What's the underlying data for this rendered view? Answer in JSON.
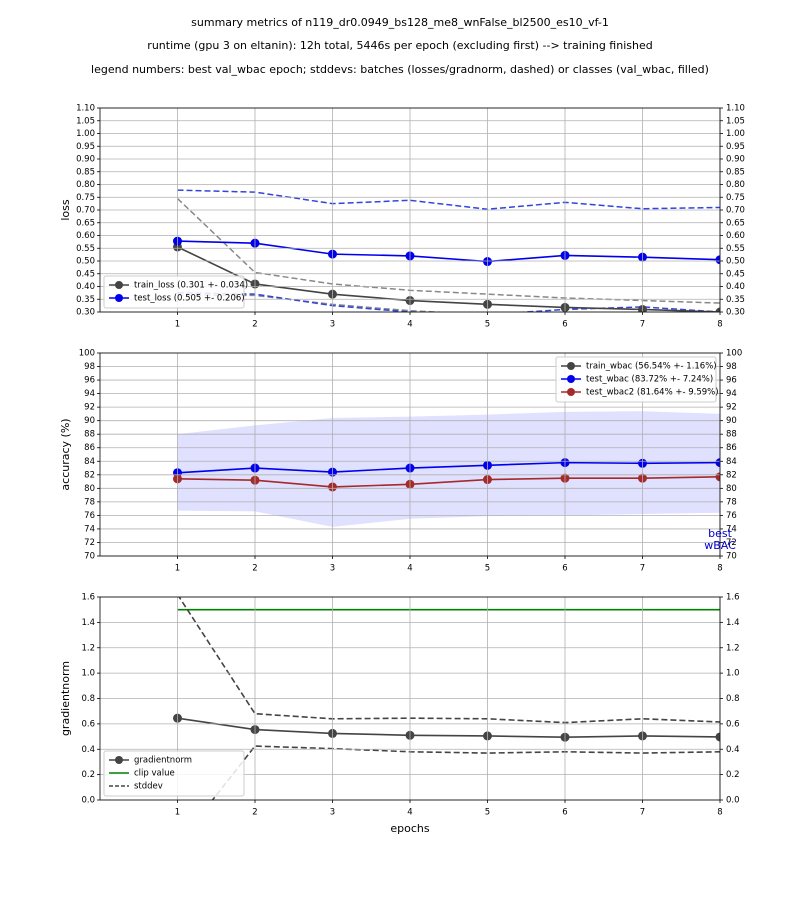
{
  "title_lines": [
    "summary metrics of n119_dr0.0949_bs128_me8_wnFalse_bl2500_es10_vf-1",
    "runtime (gpu 3 on eltanin): 12h total, 5446s per epoch (excluding first) --> training finished",
    "legend numbers: best val_wbac epoch; stddevs: batches (losses/gradnorm, dashed) or classes (val_wbac, filled)"
  ],
  "chart_data": [
    {
      "type": "line",
      "ylabel": "loss",
      "legend": "lower left",
      "grid": true,
      "x": [
        1,
        2,
        3,
        4,
        5,
        6,
        7,
        8
      ],
      "xlim": [
        0,
        8
      ],
      "xticks": [
        1,
        2,
        3,
        4,
        5,
        6,
        7,
        8
      ],
      "ylim": [
        0.3,
        1.1
      ],
      "yticks": [
        {
          "value": 0.3,
          "label": "0.30"
        },
        0.35,
        {
          "value": 0.4,
          "label": "0.40"
        },
        0.45,
        {
          "value": 0.5,
          "label": "0.50"
        },
        0.55,
        {
          "value": 0.6,
          "label": "0.60"
        },
        0.65,
        {
          "value": 0.7,
          "label": "0.70"
        },
        0.75,
        {
          "value": 0.8,
          "label": "0.80"
        },
        0.85,
        {
          "value": 0.9,
          "label": "0.90"
        },
        0.95,
        {
          "value": 1.0,
          "label": "1.00"
        },
        1.05,
        {
          "value": 1.1,
          "label": "1.10"
        }
      ],
      "series": [
        {
          "name": "train_loss (0.301 +- 0.034)",
          "color": "#444444",
          "marker": true,
          "values": [
            0.555,
            0.41,
            0.37,
            0.345,
            0.33,
            0.318,
            0.31,
            0.3
          ],
          "std_style": "dashed",
          "std_color": "#888888",
          "std_upper": [
            0.745,
            0.455,
            0.41,
            0.385,
            0.37,
            0.355,
            0.345,
            0.335
          ],
          "std_lower": [
            0.365,
            0.365,
            0.33,
            0.305,
            0.29,
            0.28,
            0.275,
            0.265
          ]
        },
        {
          "name": "test_loss (0.505 +- 0.206)",
          "color": "#0000ee",
          "marker": true,
          "values": [
            0.578,
            0.57,
            0.527,
            0.52,
            0.498,
            0.522,
            0.515,
            0.505
          ],
          "std_style": "dashed",
          "std_color": "#3344dd",
          "std_upper": [
            0.778,
            0.77,
            0.725,
            0.738,
            0.703,
            0.73,
            0.705,
            0.71
          ],
          "std_lower": [
            0.375,
            0.37,
            0.325,
            0.3,
            0.29,
            0.31,
            0.32,
            0.3
          ]
        }
      ]
    },
    {
      "type": "line",
      "ylabel": "accuracy (%)",
      "legend": "upper right",
      "grid": true,
      "annotation": [
        "best",
        "wBAC"
      ],
      "annotation_color": "#0000cc",
      "x": [
        1,
        2,
        3,
        4,
        5,
        6,
        7,
        8
      ],
      "xlim": [
        0,
        8
      ],
      "xticks": [
        1,
        2,
        3,
        4,
        5,
        6,
        7,
        8
      ],
      "ylim": [
        70,
        100
      ],
      "yticks": [
        70,
        72,
        74,
        76,
        78,
        80,
        82,
        84,
        86,
        88,
        90,
        92,
        94,
        96,
        98,
        100
      ],
      "series": [
        {
          "name": "train_wbac (56.54% +- 1.16%)",
          "color": "#444444",
          "marker": true,
          "values": [
            null,
            null,
            null,
            null,
            null,
            null,
            null,
            null
          ]
        },
        {
          "name": "test_wbac (83.72% +- 7.24%)",
          "color": "#0000ee",
          "marker": true,
          "values": [
            82.3,
            83.0,
            82.4,
            83.0,
            83.4,
            83.8,
            83.7,
            83.8
          ],
          "std_style": "filled",
          "std_color": "#ccccff",
          "std_upper": [
            88.0,
            89.3,
            90.4,
            90.6,
            90.9,
            91.3,
            91.4,
            91.0
          ],
          "std_lower": [
            76.7,
            76.6,
            74.3,
            75.5,
            75.9,
            76.0,
            76.2,
            76.4
          ]
        },
        {
          "name": "test_wbac2 (81.64% +- 9.59%)",
          "color": "#a52a2a",
          "marker": true,
          "values": [
            81.4,
            81.2,
            80.2,
            80.6,
            81.3,
            81.5,
            81.5,
            81.7
          ]
        }
      ]
    },
    {
      "type": "line",
      "ylabel": "gradientnorm",
      "xlabel": "epochs",
      "legend": "lower left",
      "grid": true,
      "x": [
        1,
        2,
        3,
        4,
        5,
        6,
        7,
        8
      ],
      "xlim": [
        0,
        8
      ],
      "xticks": [
        1,
        2,
        3,
        4,
        5,
        6,
        7,
        8
      ],
      "ylim": [
        0,
        1.6
      ],
      "yticks": [
        {
          "value": 0,
          "label": "0.0"
        },
        0.2,
        0.4,
        0.6,
        0.8,
        {
          "value": 1,
          "label": "1.0"
        },
        1.2,
        1.4,
        1.6
      ],
      "series": [
        {
          "name": "gradientnorm",
          "color": "#444444",
          "marker": true,
          "values": [
            0.645,
            0.555,
            0.525,
            0.51,
            0.505,
            0.495,
            0.505,
            0.497
          ]
        },
        {
          "name": "clip value",
          "color": "#008000",
          "marker": false,
          "values": [
            1.5,
            1.5,
            1.5,
            1.5,
            1.5,
            1.5,
            1.5,
            1.5
          ]
        },
        {
          "name": "stddev",
          "color": "#444444",
          "marker": false,
          "dashed": true,
          "values": [
            1.62,
            0.68,
            0.64,
            0.645,
            0.64,
            0.61,
            0.64,
            0.615
          ],
          "lower": [
            -0.35,
            0.425,
            0.405,
            0.38,
            0.37,
            0.38,
            0.37,
            0.38
          ]
        }
      ]
    }
  ]
}
